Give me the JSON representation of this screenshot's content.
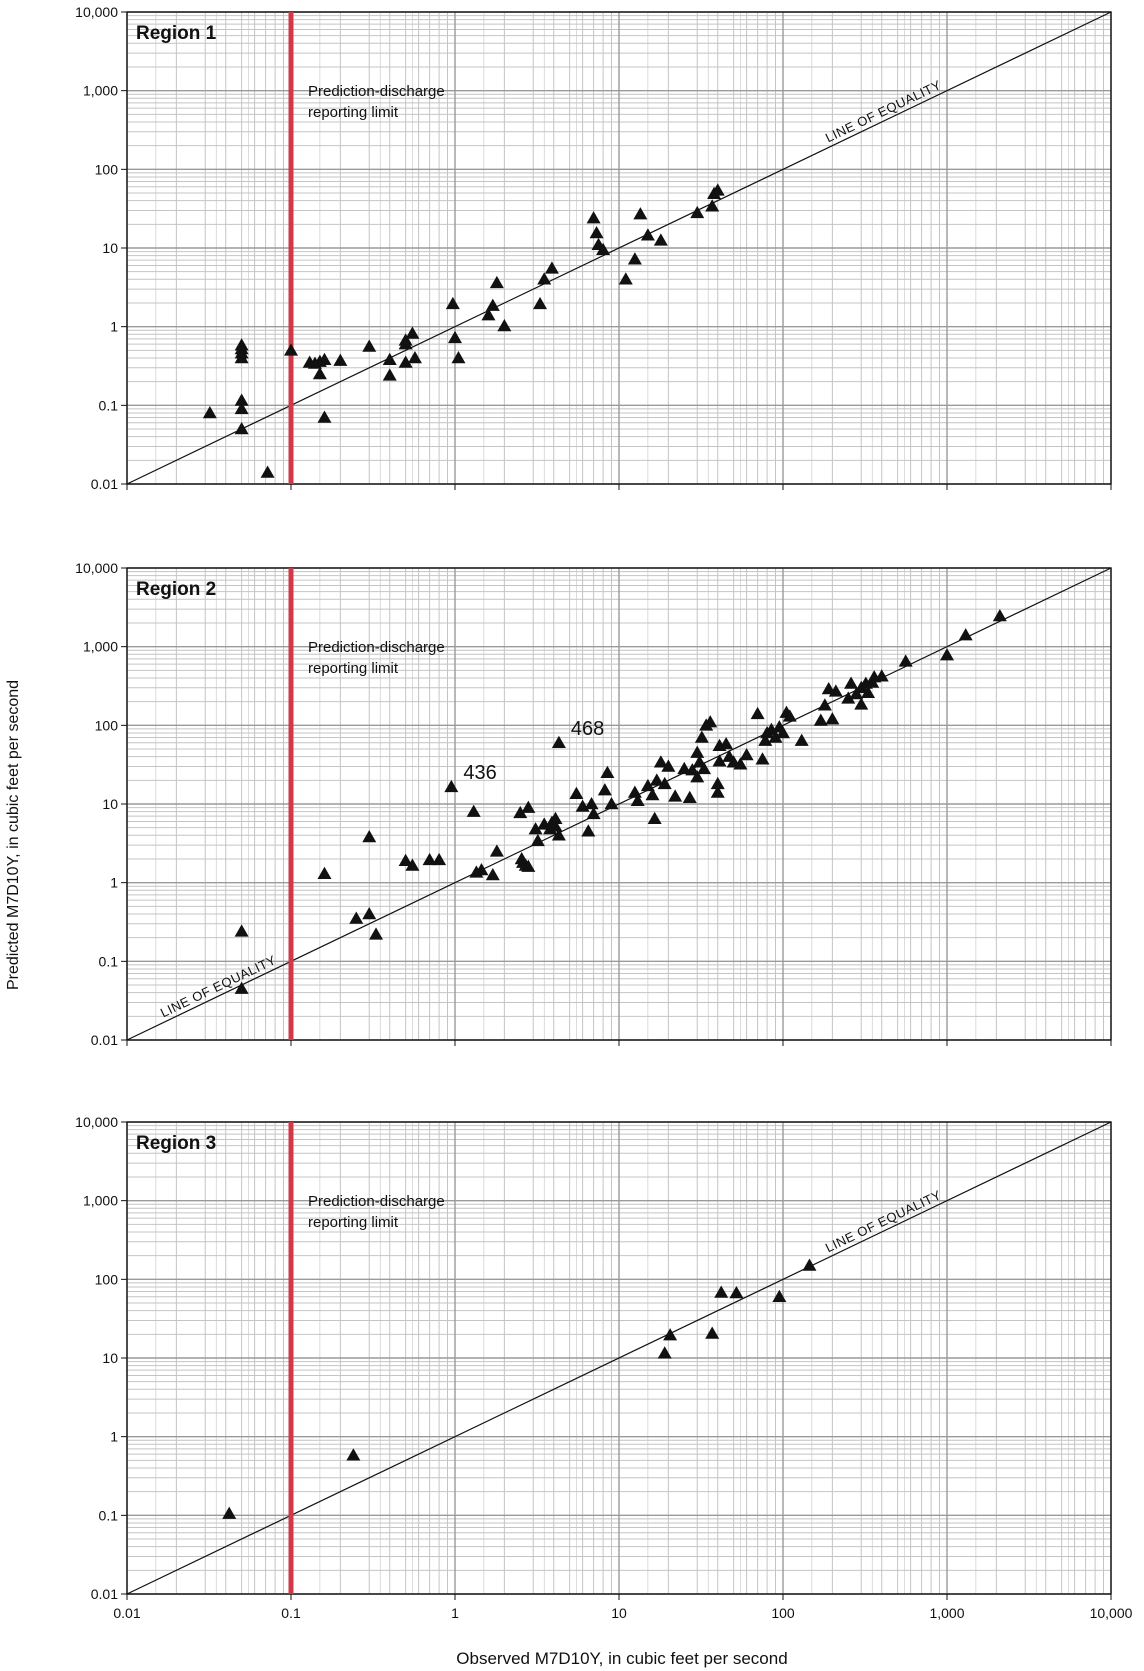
{
  "figure": {
    "ylabel": "Predicted M7D10Y, in cubic feet per second",
    "xlabel": "Observed M7D10Y, in cubic feet per second"
  },
  "colors": {
    "limit_line": "#d03a48",
    "major_grid": "#9a9a9a",
    "minor_grid": "#c4c4c4",
    "markers": "#111111"
  },
  "chart_data": [
    {
      "type": "scatter",
      "title": "Region 1",
      "x_scale": "log",
      "y_scale": "log",
      "xlim": [
        0.01,
        10000
      ],
      "ylim": [
        0.01,
        10000
      ],
      "x_ticks": [
        "0.01",
        "0.1",
        "1",
        "10",
        "100",
        "1,000",
        "10,000"
      ],
      "y_ticks": [
        "0.01",
        "0.1",
        "1",
        "10",
        "100",
        "1,000",
        "10,000"
      ],
      "show_x_ticks": false,
      "grid": true,
      "reference_line": {
        "label": "LINE OF EQUALITY",
        "from": [
          0.01,
          0.01
        ],
        "to": [
          10000,
          10000
        ]
      },
      "limit_line": {
        "x": 0.1,
        "label_lines": [
          "Prediction-discharge",
          "reporting limit"
        ]
      },
      "annotations": [],
      "points": [
        [
          0.032,
          0.08
        ],
        [
          0.05,
          0.58
        ],
        [
          0.05,
          0.52
        ],
        [
          0.05,
          0.46
        ],
        [
          0.05,
          0.4
        ],
        [
          0.05,
          0.115
        ],
        [
          0.05,
          0.09
        ],
        [
          0.05,
          0.05
        ],
        [
          0.072,
          0.014
        ],
        [
          0.1,
          0.5
        ],
        [
          0.13,
          0.35
        ],
        [
          0.14,
          0.34
        ],
        [
          0.15,
          0.36
        ],
        [
          0.15,
          0.25
        ],
        [
          0.16,
          0.38
        ],
        [
          0.16,
          0.07
        ],
        [
          0.2,
          0.37
        ],
        [
          0.3,
          0.56
        ],
        [
          0.4,
          0.38
        ],
        [
          0.4,
          0.24
        ],
        [
          0.5,
          0.67
        ],
        [
          0.5,
          0.6
        ],
        [
          0.5,
          0.35
        ],
        [
          0.55,
          0.82
        ],
        [
          0.57,
          0.4
        ],
        [
          0.97,
          1.95
        ],
        [
          1.0,
          0.72
        ],
        [
          1.05,
          0.4
        ],
        [
          1.6,
          1.4
        ],
        [
          1.7,
          1.85
        ],
        [
          1.8,
          3.6
        ],
        [
          2.0,
          1.02
        ],
        [
          3.3,
          1.95
        ],
        [
          3.5,
          4.0
        ],
        [
          3.9,
          5.5
        ],
        [
          7.0,
          24
        ],
        [
          7.3,
          15.5
        ],
        [
          7.5,
          11
        ],
        [
          8.0,
          9.5
        ],
        [
          11,
          4.0
        ],
        [
          12.5,
          7.2
        ],
        [
          13.5,
          27
        ],
        [
          15,
          14.5
        ],
        [
          18,
          12.5
        ],
        [
          30,
          28
        ],
        [
          37,
          34
        ],
        [
          38,
          49
        ],
        [
          40,
          54
        ]
      ]
    },
    {
      "type": "scatter",
      "title": "Region 2",
      "x_scale": "log",
      "y_scale": "log",
      "xlim": [
        0.01,
        10000
      ],
      "ylim": [
        0.01,
        10000
      ],
      "x_ticks": [
        "0.01",
        "0.1",
        "1",
        "10",
        "100",
        "1,000",
        "10,000"
      ],
      "y_ticks": [
        "0.01",
        "0.1",
        "1",
        "10",
        "100",
        "1,000",
        "10,000"
      ],
      "show_x_ticks": false,
      "grid": true,
      "reference_line": {
        "label": "LINE OF EQUALITY",
        "from": [
          0.01,
          0.01
        ],
        "to": [
          10000,
          10000
        ]
      },
      "limit_line": {
        "x": 0.1,
        "label_lines": [
          "Prediction-discharge",
          "reporting limit"
        ]
      },
      "annotations": [
        {
          "text": "436",
          "x": 0.95,
          "y": 16.5
        },
        {
          "text": "468",
          "x": 4.3,
          "y": 60
        }
      ],
      "points": [
        [
          0.05,
          0.24
        ],
        [
          0.05,
          0.045
        ],
        [
          0.16,
          1.3
        ],
        [
          0.25,
          0.35
        ],
        [
          0.3,
          3.8
        ],
        [
          0.3,
          0.4
        ],
        [
          0.33,
          0.22
        ],
        [
          0.5,
          1.9
        ],
        [
          0.55,
          1.65
        ],
        [
          0.7,
          1.95
        ],
        [
          0.8,
          1.95
        ],
        [
          0.95,
          16.5
        ],
        [
          1.3,
          8.0
        ],
        [
          1.35,
          1.35
        ],
        [
          1.45,
          1.45
        ],
        [
          1.7,
          1.25
        ],
        [
          1.8,
          2.5
        ],
        [
          2.5,
          7.7
        ],
        [
          2.55,
          2.0
        ],
        [
          2.6,
          1.8
        ],
        [
          2.7,
          1.65
        ],
        [
          2.8,
          1.6
        ],
        [
          2.8,
          9.0
        ],
        [
          3.1,
          4.8
        ],
        [
          3.2,
          3.4
        ],
        [
          3.5,
          5.5
        ],
        [
          3.8,
          4.8
        ],
        [
          3.9,
          5.8
        ],
        [
          4.1,
          5.2
        ],
        [
          4.1,
          6.5
        ],
        [
          4.3,
          4.0
        ],
        [
          4.3,
          60
        ],
        [
          5.5,
          13.5
        ],
        [
          6.0,
          9.3
        ],
        [
          6.5,
          4.5
        ],
        [
          6.8,
          10
        ],
        [
          7.0,
          7.5
        ],
        [
          8.2,
          15
        ],
        [
          8.5,
          25
        ],
        [
          9.0,
          10
        ],
        [
          12.5,
          14
        ],
        [
          13,
          11
        ],
        [
          15,
          17
        ],
        [
          16,
          13
        ],
        [
          16.5,
          6.5
        ],
        [
          17,
          20
        ],
        [
          18,
          34
        ],
        [
          19,
          18
        ],
        [
          20,
          30
        ],
        [
          22,
          12.5
        ],
        [
          25,
          28
        ],
        [
          27,
          12
        ],
        [
          28,
          27
        ],
        [
          30,
          22
        ],
        [
          30,
          45
        ],
        [
          31,
          34
        ],
        [
          32,
          70
        ],
        [
          33,
          28
        ],
        [
          34,
          100
        ],
        [
          36,
          110
        ],
        [
          40,
          14
        ],
        [
          40,
          18
        ],
        [
          41,
          35
        ],
        [
          41,
          55
        ],
        [
          45,
          58
        ],
        [
          47,
          40
        ],
        [
          50,
          34
        ],
        [
          55,
          32
        ],
        [
          60,
          42
        ],
        [
          70,
          140
        ],
        [
          75,
          37
        ],
        [
          78,
          64
        ],
        [
          80,
          80
        ],
        [
          85,
          88
        ],
        [
          90,
          70
        ],
        [
          95,
          95
        ],
        [
          100,
          80
        ],
        [
          105,
          145
        ],
        [
          110,
          130
        ],
        [
          130,
          64
        ],
        [
          170,
          115
        ],
        [
          180,
          180
        ],
        [
          190,
          290
        ],
        [
          200,
          120
        ],
        [
          210,
          270
        ],
        [
          250,
          220
        ],
        [
          260,
          340
        ],
        [
          280,
          250
        ],
        [
          300,
          185
        ],
        [
          300,
          300
        ],
        [
          320,
          340
        ],
        [
          330,
          260
        ],
        [
          350,
          350
        ],
        [
          360,
          410
        ],
        [
          400,
          420
        ],
        [
          560,
          650
        ],
        [
          1000,
          780
        ],
        [
          1300,
          1400
        ],
        [
          2100,
          2450
        ]
      ]
    },
    {
      "type": "scatter",
      "title": "Region 3",
      "x_scale": "log",
      "y_scale": "log",
      "xlim": [
        0.01,
        10000
      ],
      "ylim": [
        0.01,
        10000
      ],
      "x_ticks": [
        "0.01",
        "0.1",
        "1",
        "10",
        "100",
        "1,000",
        "10,000"
      ],
      "y_ticks": [
        "0.01",
        "0.1",
        "1",
        "10",
        "100",
        "1,000",
        "10,000"
      ],
      "show_x_ticks": true,
      "grid": true,
      "reference_line": {
        "label": "LINE OF EQUALITY",
        "from": [
          0.01,
          0.01
        ],
        "to": [
          10000,
          10000
        ]
      },
      "limit_line": {
        "x": 0.1,
        "label_lines": [
          "Prediction-discharge",
          "reporting limit"
        ]
      },
      "annotations": [],
      "points": [
        [
          0.042,
          0.105
        ],
        [
          0.24,
          0.58
        ],
        [
          19,
          11.5
        ],
        [
          20.5,
          19.5
        ],
        [
          37,
          20.5
        ],
        [
          42,
          68
        ],
        [
          52,
          67
        ],
        [
          95,
          60
        ],
        [
          145,
          150
        ]
      ]
    }
  ]
}
